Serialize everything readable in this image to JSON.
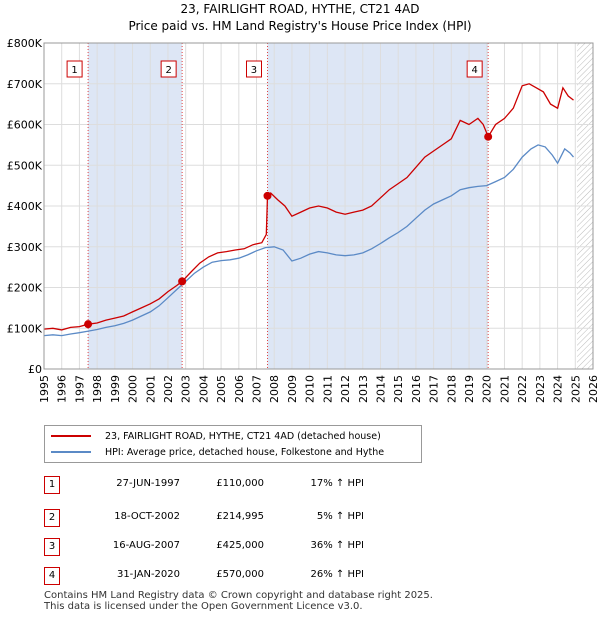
{
  "title_line1": "23, FAIRLIGHT ROAD, HYTHE, CT21 4AD",
  "title_line2": "Price paid vs. HM Land Registry's House Price Index (HPI)",
  "chart_data": {
    "type": "line",
    "x_range": [
      1995,
      2026
    ],
    "ylim": [
      0,
      800000
    ],
    "y_ticks": [
      {
        "value": 0,
        "label": "£0"
      },
      {
        "value": 100000,
        "label": "£100K"
      },
      {
        "value": 200000,
        "label": "£200K"
      },
      {
        "value": 300000,
        "label": "£300K"
      },
      {
        "value": 400000,
        "label": "£400K"
      },
      {
        "value": 500000,
        "label": "£500K"
      },
      {
        "value": 600000,
        "label": "£600K"
      },
      {
        "value": 700000,
        "label": "£700K"
      },
      {
        "value": 800000,
        "label": "£800K"
      }
    ],
    "x_ticks": [
      "1995",
      "1996",
      "1997",
      "1998",
      "1999",
      "2000",
      "2001",
      "2002",
      "2003",
      "2004",
      "2005",
      "2006",
      "2007",
      "2008",
      "2009",
      "2010",
      "2011",
      "2012",
      "2013",
      "2014",
      "2015",
      "2016",
      "2017",
      "2018",
      "2019",
      "2020",
      "2021",
      "2022",
      "2023",
      "2024",
      "2025",
      "2026"
    ],
    "future_hatch_from": 2025.1,
    "colors": {
      "property": "#cc0000",
      "hpi": "#5b8ac6",
      "shade": "#dde6f5",
      "grid": "#dddddd"
    },
    "series": [
      {
        "name": "23, FAIRLIGHT ROAD, HYTHE, CT21 4AD (detached house)",
        "color": "#cc0000",
        "points": [
          [
            1995.0,
            98000
          ],
          [
            1995.5,
            100000
          ],
          [
            1996.0,
            96000
          ],
          [
            1996.5,
            102000
          ],
          [
            1997.0,
            104000
          ],
          [
            1997.49,
            110000
          ],
          [
            1998.0,
            113000
          ],
          [
            1998.5,
            120000
          ],
          [
            1999.0,
            125000
          ],
          [
            1999.5,
            130000
          ],
          [
            2000.0,
            140000
          ],
          [
            2000.5,
            150000
          ],
          [
            2001.0,
            160000
          ],
          [
            2001.5,
            172000
          ],
          [
            2002.0,
            190000
          ],
          [
            2002.5,
            205000
          ],
          [
            2002.8,
            214995
          ],
          [
            2003.3,
            238000
          ],
          [
            2003.8,
            260000
          ],
          [
            2004.3,
            275000
          ],
          [
            2004.8,
            285000
          ],
          [
            2005.3,
            288000
          ],
          [
            2005.8,
            292000
          ],
          [
            2006.3,
            295000
          ],
          [
            2006.8,
            305000
          ],
          [
            2007.3,
            310000
          ],
          [
            2007.55,
            330000
          ],
          [
            2007.62,
            425000
          ],
          [
            2007.8,
            432000
          ],
          [
            2008.2,
            415000
          ],
          [
            2008.6,
            400000
          ],
          [
            2009.0,
            375000
          ],
          [
            2009.5,
            385000
          ],
          [
            2010.0,
            395000
          ],
          [
            2010.5,
            400000
          ],
          [
            2011.0,
            395000
          ],
          [
            2011.5,
            385000
          ],
          [
            2012.0,
            380000
          ],
          [
            2012.5,
            385000
          ],
          [
            2013.0,
            390000
          ],
          [
            2013.5,
            400000
          ],
          [
            2014.0,
            420000
          ],
          [
            2014.5,
            440000
          ],
          [
            2015.0,
            455000
          ],
          [
            2015.5,
            470000
          ],
          [
            2016.0,
            495000
          ],
          [
            2016.5,
            520000
          ],
          [
            2017.0,
            535000
          ],
          [
            2017.5,
            550000
          ],
          [
            2018.0,
            565000
          ],
          [
            2018.5,
            610000
          ],
          [
            2019.0,
            600000
          ],
          [
            2019.5,
            615000
          ],
          [
            2019.8,
            600000
          ],
          [
            2020.08,
            570000
          ],
          [
            2020.5,
            600000
          ],
          [
            2021.0,
            615000
          ],
          [
            2021.5,
            640000
          ],
          [
            2022.0,
            695000
          ],
          [
            2022.4,
            700000
          ],
          [
            2022.8,
            690000
          ],
          [
            2023.2,
            680000
          ],
          [
            2023.6,
            650000
          ],
          [
            2024.0,
            640000
          ],
          [
            2024.3,
            690000
          ],
          [
            2024.6,
            670000
          ],
          [
            2024.9,
            660000
          ]
        ]
      },
      {
        "name": "HPI: Average price, detached house, Folkestone and Hythe",
        "color": "#5b8ac6",
        "points": [
          [
            1995.0,
            82000
          ],
          [
            1995.5,
            84000
          ],
          [
            1996.0,
            82000
          ],
          [
            1996.5,
            86000
          ],
          [
            1997.0,
            89000
          ],
          [
            1997.5,
            93000
          ],
          [
            1998.0,
            97000
          ],
          [
            1998.5,
            102000
          ],
          [
            1999.0,
            106000
          ],
          [
            1999.5,
            112000
          ],
          [
            2000.0,
            120000
          ],
          [
            2000.5,
            130000
          ],
          [
            2001.0,
            140000
          ],
          [
            2001.5,
            155000
          ],
          [
            2002.0,
            175000
          ],
          [
            2002.5,
            195000
          ],
          [
            2003.0,
            215000
          ],
          [
            2003.5,
            235000
          ],
          [
            2004.0,
            250000
          ],
          [
            2004.5,
            262000
          ],
          [
            2005.0,
            266000
          ],
          [
            2005.5,
            268000
          ],
          [
            2006.0,
            272000
          ],
          [
            2006.5,
            280000
          ],
          [
            2007.0,
            290000
          ],
          [
            2007.5,
            298000
          ],
          [
            2008.0,
            300000
          ],
          [
            2008.5,
            292000
          ],
          [
            2009.0,
            265000
          ],
          [
            2009.5,
            272000
          ],
          [
            2010.0,
            282000
          ],
          [
            2010.5,
            288000
          ],
          [
            2011.0,
            285000
          ],
          [
            2011.5,
            280000
          ],
          [
            2012.0,
            278000
          ],
          [
            2012.5,
            280000
          ],
          [
            2013.0,
            285000
          ],
          [
            2013.5,
            295000
          ],
          [
            2014.0,
            308000
          ],
          [
            2014.5,
            322000
          ],
          [
            2015.0,
            335000
          ],
          [
            2015.5,
            350000
          ],
          [
            2016.0,
            370000
          ],
          [
            2016.5,
            390000
          ],
          [
            2017.0,
            405000
          ],
          [
            2017.5,
            415000
          ],
          [
            2018.0,
            425000
          ],
          [
            2018.5,
            440000
          ],
          [
            2019.0,
            445000
          ],
          [
            2019.5,
            448000
          ],
          [
            2020.0,
            450000
          ],
          [
            2020.5,
            460000
          ],
          [
            2021.0,
            470000
          ],
          [
            2021.5,
            490000
          ],
          [
            2022.0,
            520000
          ],
          [
            2022.5,
            540000
          ],
          [
            2022.9,
            550000
          ],
          [
            2023.3,
            545000
          ],
          [
            2023.7,
            525000
          ],
          [
            2024.0,
            505000
          ],
          [
            2024.4,
            540000
          ],
          [
            2024.7,
            530000
          ],
          [
            2024.9,
            520000
          ]
        ]
      }
    ],
    "sales": [
      {
        "id": "1",
        "x": 1997.49,
        "price": 110000
      },
      {
        "id": "2",
        "x": 2002.8,
        "price": 214995
      },
      {
        "id": "3",
        "x": 2007.62,
        "price": 425000
      },
      {
        "id": "4",
        "x": 2020.08,
        "price": 570000
      }
    ]
  },
  "legend": {
    "property_label": "23, FAIRLIGHT ROAD, HYTHE, CT21 4AD (detached house)",
    "hpi_label": "HPI: Average price, detached house, Folkestone and Hythe"
  },
  "transactions": [
    {
      "id": "1",
      "date": "27-JUN-1997",
      "price": "£110,000",
      "hpi": "17% ↑ HPI"
    },
    {
      "id": "2",
      "date": "18-OCT-2002",
      "price": "£214,995",
      "hpi": "5% ↑ HPI"
    },
    {
      "id": "3",
      "date": "16-AUG-2007",
      "price": "£425,000",
      "hpi": "36% ↑ HPI"
    },
    {
      "id": "4",
      "date": "31-JAN-2020",
      "price": "£570,000",
      "hpi": "26% ↑ HPI"
    }
  ],
  "footer": {
    "line1": "Contains HM Land Registry data © Crown copyright and database right 2025.",
    "line2": "This data is licensed under the Open Government Licence v3.0."
  }
}
